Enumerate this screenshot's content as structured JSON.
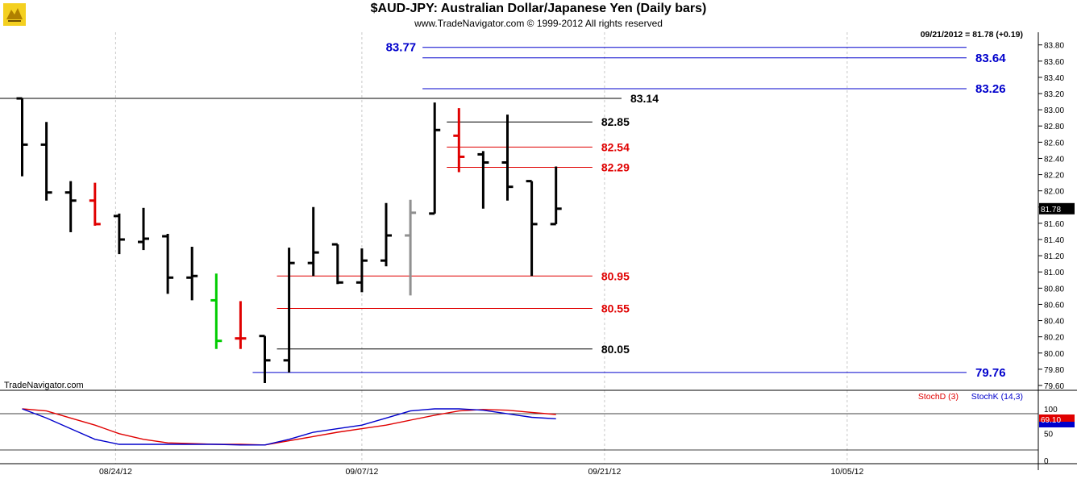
{
  "header": {
    "title": "$AUD-JPY:  Australian Dollar/Japanese Yen  (Daily bars)",
    "subtitle": "www.TradeNavigator.com © 1999-2012 All rights reserved",
    "last_quote": "09/21/2012 = 81.78 (+0.19)",
    "watermark": "TradeNavigator.com",
    "current_price_label": "81.78"
  },
  "colors": {
    "bar": "#000000",
    "bar_down_red": "#e00000",
    "bar_gray": "#909090",
    "bar_green": "#00cc00",
    "level_red": "#e00000",
    "level_black": "#000000",
    "level_blue": "#0000cc",
    "stoch_d": "#e00000",
    "stoch_k": "#0000cc",
    "grid": "#c8c8c8"
  },
  "chart_data": [
    {
      "type": "ohlc",
      "title": "$AUD-JPY:  Australian Dollar/Japanese Yen  (Daily bars)",
      "ylim": [
        79.6,
        83.9
      ],
      "y_ticks": [
        "83.80",
        "83.60",
        "83.40",
        "83.20",
        "83.00",
        "82.80",
        "82.60",
        "82.40",
        "82.20",
        "82.00",
        "81.80",
        "81.60",
        "81.40",
        "81.20",
        "81.00",
        "80.80",
        "80.60",
        "80.40",
        "80.20",
        "80.00",
        "79.80",
        "79.60"
      ],
      "x_labels": [
        "08/24/12",
        "09/07/12",
        "09/21/12",
        "10/05/12"
      ],
      "x_label_days": [
        4,
        14,
        24,
        34
      ],
      "bars": [
        {
          "day": 0,
          "open": 83.14,
          "high": 83.14,
          "low": 82.18,
          "close": 82.57,
          "color": "black"
        },
        {
          "day": 1,
          "open": 82.57,
          "high": 82.85,
          "low": 81.88,
          "close": 81.98,
          "color": "black"
        },
        {
          "day": 2,
          "open": 81.98,
          "high": 82.12,
          "low": 81.49,
          "close": 81.88,
          "color": "black"
        },
        {
          "day": 3,
          "open": 81.88,
          "high": 82.1,
          "low": 81.57,
          "close": 81.59,
          "color": "red"
        },
        {
          "day": 4,
          "open": 81.69,
          "high": 81.72,
          "low": 81.22,
          "close": 81.4,
          "color": "black"
        },
        {
          "day": 5,
          "open": 81.37,
          "high": 81.79,
          "low": 81.27,
          "close": 81.41,
          "color": "black"
        },
        {
          "day": 6,
          "open": 81.44,
          "high": 81.47,
          "low": 80.73,
          "close": 80.93,
          "color": "black"
        },
        {
          "day": 7,
          "open": 80.93,
          "high": 81.31,
          "low": 80.65,
          "close": 80.95,
          "color": "black"
        },
        {
          "day": 8,
          "open": 80.65,
          "high": 80.98,
          "low": 80.05,
          "close": 80.15,
          "color": "green"
        },
        {
          "day": 9,
          "open": 80.18,
          "high": 80.64,
          "low": 80.05,
          "close": 80.18,
          "color": "red"
        },
        {
          "day": 10,
          "open": 80.21,
          "high": 80.21,
          "low": 79.63,
          "close": 79.91,
          "color": "black"
        },
        {
          "day": 11,
          "open": 79.91,
          "high": 81.3,
          "low": 79.76,
          "close": 81.11,
          "color": "black"
        },
        {
          "day": 12,
          "open": 81.11,
          "high": 81.8,
          "low": 80.95,
          "close": 81.24,
          "color": "black"
        },
        {
          "day": 13,
          "open": 81.34,
          "high": 81.34,
          "low": 80.85,
          "close": 80.87,
          "color": "black"
        },
        {
          "day": 14,
          "open": 80.87,
          "high": 81.29,
          "low": 80.75,
          "close": 81.14,
          "color": "black"
        },
        {
          "day": 15,
          "open": 81.14,
          "high": 81.85,
          "low": 81.07,
          "close": 81.45,
          "color": "black"
        },
        {
          "day": 16,
          "open": 81.45,
          "high": 81.89,
          "low": 80.71,
          "close": 81.73,
          "color": "gray"
        },
        {
          "day": 17,
          "open": 81.72,
          "high": 83.09,
          "low": 81.72,
          "close": 82.75,
          "color": "black"
        },
        {
          "day": 18,
          "open": 82.68,
          "high": 83.02,
          "low": 82.23,
          "close": 82.42,
          "color": "red"
        },
        {
          "day": 19,
          "open": 82.45,
          "high": 82.49,
          "low": 81.78,
          "close": 82.35,
          "color": "black"
        },
        {
          "day": 20,
          "open": 82.35,
          "high": 82.94,
          "low": 81.88,
          "close": 82.05,
          "color": "black"
        },
        {
          "day": 21,
          "open": 82.12,
          "high": 82.12,
          "low": 80.95,
          "close": 81.59,
          "color": "black"
        },
        {
          "day": 22,
          "open": 81.59,
          "high": 82.3,
          "low": 81.59,
          "close": 81.78,
          "color": "black"
        }
      ],
      "levels": [
        {
          "value": "83.77",
          "y": 83.77,
          "color": "blue",
          "from_day": 16.5,
          "to_day": 39,
          "label_pos": "left"
        },
        {
          "value": "83.64",
          "y": 83.64,
          "color": "blue",
          "from_day": 16.5,
          "to_day": 39,
          "label_pos": "right"
        },
        {
          "value": "83.26",
          "y": 83.26,
          "color": "blue",
          "from_day": 16.5,
          "to_day": 39,
          "label_pos": "right"
        },
        {
          "value": "83.14",
          "y": 83.14,
          "color": "black",
          "from_day": -1,
          "to_day": 24.7,
          "label_pos": "end"
        },
        {
          "value": "82.85",
          "y": 82.85,
          "color": "black",
          "from_day": 17.5,
          "to_day": 23.5,
          "label_pos": "end"
        },
        {
          "value": "82.54",
          "y": 82.54,
          "color": "red",
          "from_day": 17.5,
          "to_day": 23.5,
          "label_pos": "end"
        },
        {
          "value": "82.29",
          "y": 82.29,
          "color": "red",
          "from_day": 17.5,
          "to_day": 23.5,
          "label_pos": "end"
        },
        {
          "value": "80.95",
          "y": 80.95,
          "color": "red",
          "from_day": 10.5,
          "to_day": 23.5,
          "label_pos": "end"
        },
        {
          "value": "80.55",
          "y": 80.55,
          "color": "red",
          "from_day": 10.5,
          "to_day": 23.5,
          "label_pos": "end"
        },
        {
          "value": "80.05",
          "y": 80.05,
          "color": "black",
          "from_day": 10.5,
          "to_day": 23.5,
          "label_pos": "end"
        },
        {
          "value": "79.76",
          "y": 79.76,
          "color": "blue",
          "from_day": 9.5,
          "to_day": 39,
          "label_pos": "right"
        }
      ]
    },
    {
      "type": "line",
      "title": "",
      "ylim": [
        0,
        100
      ],
      "y_ticks": [
        "100",
        "50",
        "0"
      ],
      "value_label": "69.10",
      "series": [
        {
          "name": "StochD (3)",
          "color": "red",
          "x": [
            0,
            1,
            2,
            3,
            4,
            5,
            6,
            7,
            8,
            9,
            10,
            11,
            12,
            13,
            14,
            15,
            16,
            17,
            18,
            19,
            20,
            21,
            22
          ],
          "values": [
            88,
            80,
            70,
            60,
            48,
            40,
            35,
            34,
            33,
            33,
            32,
            38,
            44,
            50,
            55,
            60,
            67,
            74,
            80,
            82,
            81,
            78,
            75
          ]
        },
        {
          "name": "StochK (14,3)",
          "color": "blue",
          "x": [
            0,
            1,
            2,
            3,
            4,
            5,
            6,
            7,
            8,
            9,
            10,
            11,
            12,
            13,
            14,
            15,
            16,
            17,
            18,
            19,
            20,
            21,
            22
          ],
          "values": [
            86,
            70,
            55,
            40,
            33,
            33,
            33,
            33,
            33,
            32,
            32,
            40,
            50,
            55,
            60,
            70,
            80,
            83,
            84,
            81,
            76,
            71,
            69
          ]
        }
      ]
    }
  ]
}
